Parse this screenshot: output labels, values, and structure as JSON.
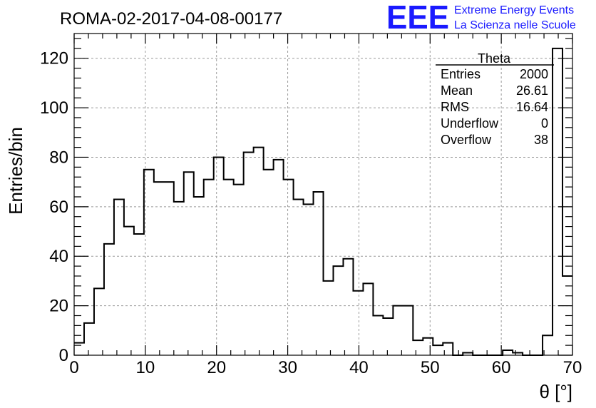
{
  "title": "ROMA-02-2017-04-08-00177",
  "logo": {
    "mark": "EEE",
    "line1": "Extreme Energy Events",
    "line2": "La Scienza nelle Scuole",
    "color": "#1a1aff"
  },
  "stats": {
    "name": "Theta",
    "rows": [
      {
        "label": "Entries",
        "value": "2000"
      },
      {
        "label": "Mean",
        "value": "26.61"
      },
      {
        "label": "RMS",
        "value": "16.64"
      },
      {
        "label": "Underflow",
        "value": "0"
      },
      {
        "label": "Overflow",
        "value": "38"
      }
    ]
  },
  "chart_data": {
    "type": "histogram",
    "xlabel": "θ [°]",
    "ylabel": "Entries/bin",
    "xlim": [
      0,
      70
    ],
    "ylim": [
      0,
      130
    ],
    "bin_width": 1.4,
    "x_ticks": [
      0,
      10,
      20,
      30,
      40,
      50,
      60,
      70
    ],
    "y_ticks": [
      0,
      20,
      40,
      60,
      80,
      100,
      120
    ],
    "grid": true,
    "values": [
      5,
      13,
      27,
      45,
      63,
      52,
      49,
      75,
      70,
      70,
      62,
      74,
      64,
      71,
      80,
      71,
      69,
      82,
      84,
      75,
      79,
      71,
      63,
      61,
      66,
      30,
      36,
      39,
      26,
      29,
      16,
      15,
      20,
      20,
      6,
      7,
      4,
      5,
      0,
      1,
      0,
      0,
      0,
      2,
      1,
      0,
      0,
      8,
      124,
      32
    ]
  }
}
